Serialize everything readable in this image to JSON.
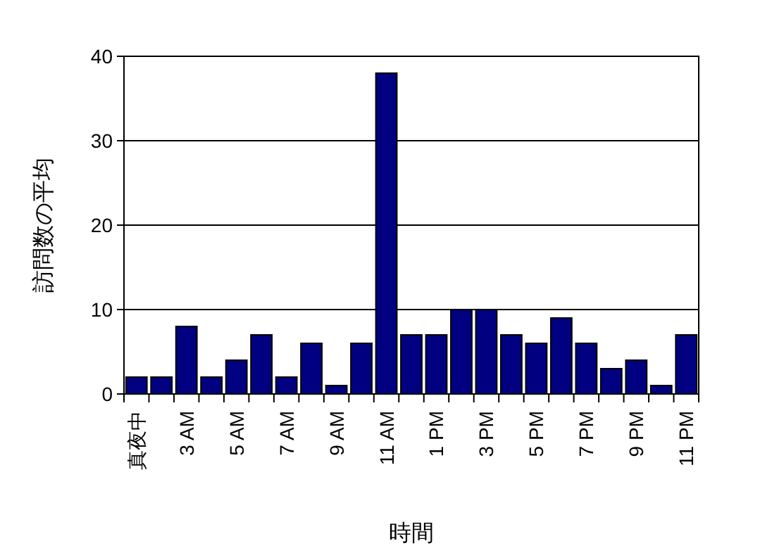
{
  "chart_data": {
    "type": "bar",
    "xlabel": "時間",
    "ylabel": "訪問数の平均",
    "categories": [
      "真夜中",
      null,
      "3 AM",
      null,
      "5 AM",
      null,
      "7 AM",
      null,
      "9 AM",
      null,
      "11 AM",
      null,
      "1 PM",
      null,
      "3 PM",
      null,
      "5 PM",
      null,
      "7 PM",
      null,
      "9 PM",
      null,
      "11 PM"
    ],
    "values": [
      2,
      2,
      8,
      2,
      4,
      7,
      2,
      6,
      1,
      6,
      38,
      7,
      7,
      10,
      10,
      7,
      6,
      9,
      6,
      3,
      4,
      1,
      7
    ],
    "color": "#000080",
    "ylim": [
      0,
      40
    ],
    "yticks": [
      0,
      10,
      20,
      30,
      40
    ],
    "grid": "y"
  }
}
